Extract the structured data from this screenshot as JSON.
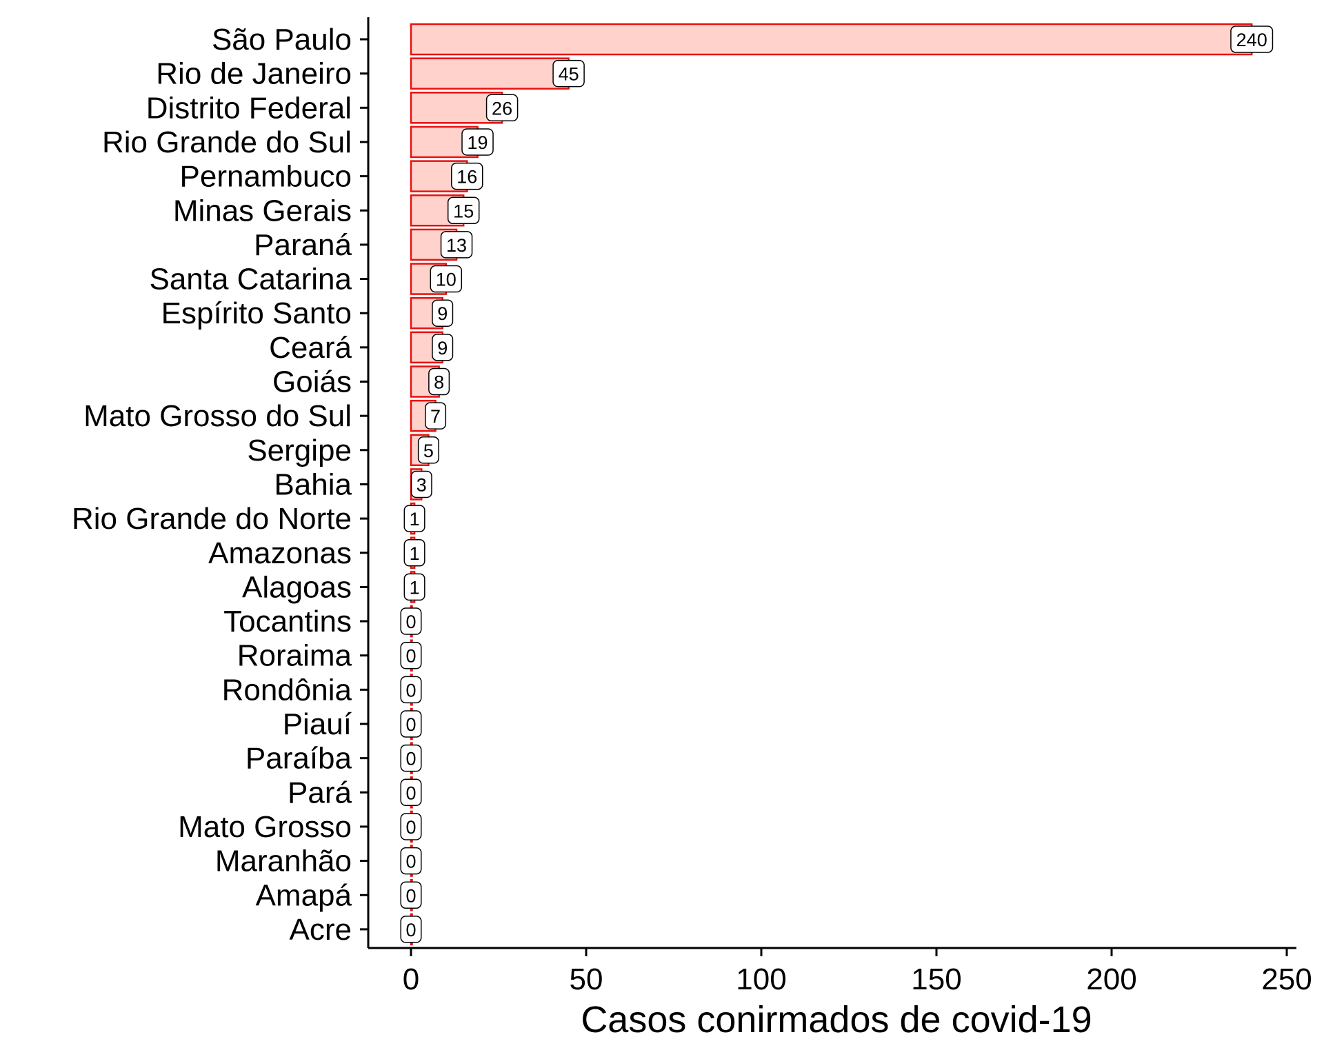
{
  "chart_data": {
    "type": "bar",
    "orientation": "horizontal",
    "categories": [
      "São Paulo",
      "Rio de Janeiro",
      "Distrito Federal",
      "Rio Grande do Sul",
      "Pernambuco",
      "Minas Gerais",
      "Paraná",
      "Santa Catarina",
      "Espírito Santo",
      "Ceará",
      "Goiás",
      "Mato Grosso do Sul",
      "Sergipe",
      "Bahia",
      "Rio Grande do Norte",
      "Amazonas",
      "Alagoas",
      "Tocantins",
      "Roraima",
      "Rondônia",
      "Piauí",
      "Paraíba",
      "Pará",
      "Mato Grosso",
      "Maranhão",
      "Amapá",
      "Acre"
    ],
    "values": [
      240,
      45,
      26,
      19,
      16,
      15,
      13,
      10,
      9,
      9,
      8,
      7,
      5,
      3,
      1,
      1,
      1,
      0,
      0,
      0,
      0,
      0,
      0,
      0,
      0,
      0,
      0
    ],
    "xlabel": "Casos conirmados de covid-19",
    "ylabel": "",
    "xlim": [
      -12,
      250
    ],
    "xticks": [
      0,
      50,
      100,
      150,
      200,
      250
    ],
    "grid": false,
    "legend": "none",
    "colors": {
      "bar_fill": "#ffd2cc",
      "bar_stroke": "#e8100f",
      "label_box_fill": "#ffffff",
      "label_box_stroke": "#000000"
    }
  }
}
